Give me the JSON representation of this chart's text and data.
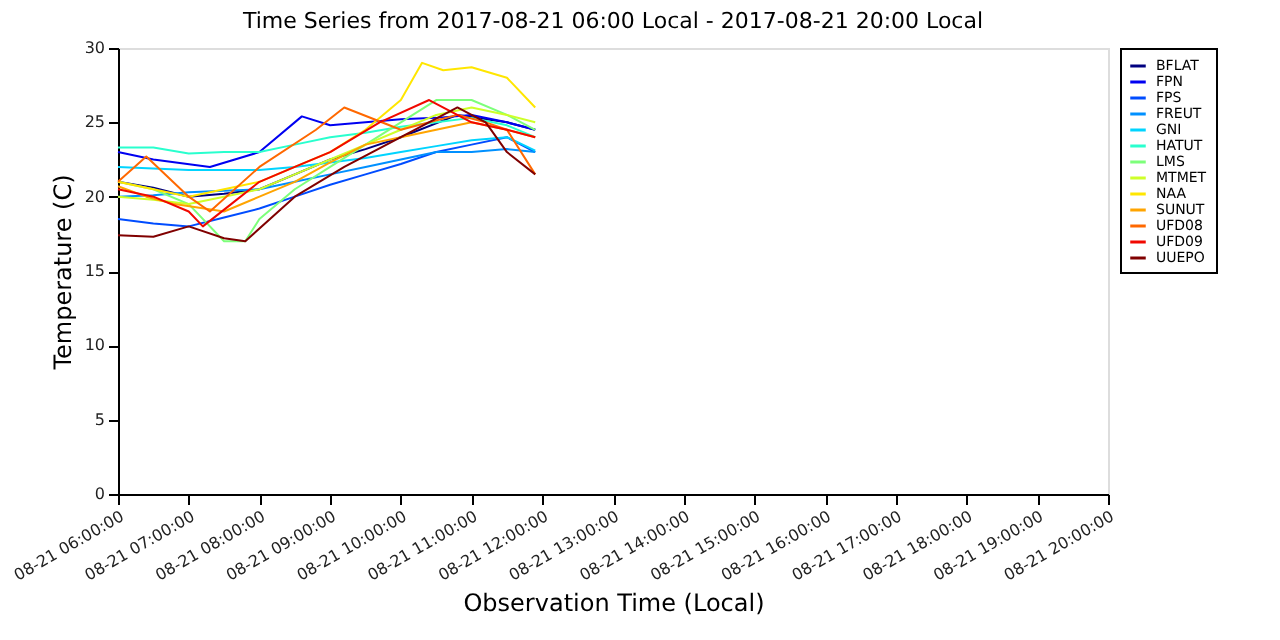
{
  "chart_data": {
    "type": "line",
    "title": "Time Series from 2017-08-21 06:00 Local - 2017-08-21 20:00 Local",
    "xlabel": "Observation Time (Local)",
    "ylabel": "Temperature (C)",
    "xlim": [
      "2017-08-21T06:00",
      "2017-08-21T20:00"
    ],
    "ylim": [
      0,
      30
    ],
    "yticks": [
      0,
      5,
      10,
      15,
      20,
      25,
      30
    ],
    "xticks": [
      {
        "value": "2017-08-21T06:00",
        "label": "08-21 06:00:00"
      },
      {
        "value": "2017-08-21T07:00",
        "label": "08-21 07:00:00"
      },
      {
        "value": "2017-08-21T08:00",
        "label": "08-21 08:00:00"
      },
      {
        "value": "2017-08-21T09:00",
        "label": "08-21 09:00:00"
      },
      {
        "value": "2017-08-21T10:00",
        "label": "08-21 10:00:00"
      },
      {
        "value": "2017-08-21T11:00",
        "label": "08-21 11:00:00"
      },
      {
        "value": "2017-08-21T12:00",
        "label": "08-21 12:00:00"
      },
      {
        "value": "2017-08-21T13:00",
        "label": "08-21 13:00:00"
      },
      {
        "value": "2017-08-21T14:00",
        "label": "08-21 14:00:00"
      },
      {
        "value": "2017-08-21T15:00",
        "label": "08-21 15:00:00"
      },
      {
        "value": "2017-08-21T16:00",
        "label": "08-21 16:00:00"
      },
      {
        "value": "2017-08-21T17:00",
        "label": "08-21 17:00:00"
      },
      {
        "value": "2017-08-21T18:00",
        "label": "08-21 18:00:00"
      },
      {
        "value": "2017-08-21T19:00",
        "label": "08-21 19:00:00"
      },
      {
        "value": "2017-08-21T20:00",
        "label": "08-21 20:00:00"
      }
    ],
    "grid": false,
    "legend": "right",
    "series": [
      {
        "name": "BFLAT",
        "color": "#000080",
        "x": [
          "2017-08-21T06:00",
          "2017-08-21T06:30",
          "2017-08-21T07:00",
          "2017-08-21T07:30",
          "2017-08-21T08:00",
          "2017-08-21T08:30",
          "2017-08-21T09:00",
          "2017-08-21T09:30",
          "2017-08-21T10:00",
          "2017-08-21T10:48",
          "2017-08-21T11:30",
          "2017-08-21T11:54"
        ],
        "values": [
          21,
          20.6,
          20,
          20.2,
          20.5,
          21.5,
          22.5,
          23.2,
          24,
          25.5,
          25,
          24.5
        ]
      },
      {
        "name": "FPN",
        "color": "#0000f1",
        "x": [
          "2017-08-21T06:00",
          "2017-08-21T06:30",
          "2017-08-21T07:18",
          "2017-08-21T08:00",
          "2017-08-21T08:36",
          "2017-08-21T09:00",
          "2017-08-21T09:30",
          "2017-08-21T10:00",
          "2017-08-21T10:30",
          "2017-08-21T11:00",
          "2017-08-21T11:30",
          "2017-08-21T11:54"
        ],
        "values": [
          23,
          22.5,
          22,
          23,
          25.4,
          24.8,
          25,
          25.2,
          25.3,
          25.5,
          25,
          24.5
        ]
      },
      {
        "name": "FPS",
        "color": "#004cff",
        "x": [
          "2017-08-21T06:00",
          "2017-08-21T06:30",
          "2017-08-21T07:00",
          "2017-08-21T07:30",
          "2017-08-21T08:00",
          "2017-08-21T08:30",
          "2017-08-21T09:00",
          "2017-08-21T09:30",
          "2017-08-21T10:00",
          "2017-08-21T10:30",
          "2017-08-21T11:00",
          "2017-08-21T11:30",
          "2017-08-21T11:54"
        ],
        "values": [
          18.5,
          18.2,
          18,
          18.6,
          19.2,
          20,
          20.8,
          21.5,
          22.2,
          23,
          23.5,
          24,
          23
        ]
      },
      {
        "name": "FREUT",
        "color": "#0090ff",
        "x": [
          "2017-08-21T06:00",
          "2017-08-21T06:30",
          "2017-08-21T07:00",
          "2017-08-21T07:30",
          "2017-08-21T08:00",
          "2017-08-21T08:30",
          "2017-08-21T09:00",
          "2017-08-21T09:30",
          "2017-08-21T10:00",
          "2017-08-21T10:30",
          "2017-08-21T11:00",
          "2017-08-21T11:30",
          "2017-08-21T11:54"
        ],
        "values": [
          20,
          20.1,
          20.3,
          20.4,
          20.5,
          21,
          21.5,
          22,
          22.5,
          23,
          23,
          23.2,
          23
        ]
      },
      {
        "name": "GNI",
        "color": "#00d4ff",
        "x": [
          "2017-08-21T06:00",
          "2017-08-21T06:30",
          "2017-08-21T07:00",
          "2017-08-21T07:30",
          "2017-08-21T08:00",
          "2017-08-21T08:30",
          "2017-08-21T09:00",
          "2017-08-21T09:30",
          "2017-08-21T10:00",
          "2017-08-21T10:30",
          "2017-08-21T11:00",
          "2017-08-21T11:30",
          "2017-08-21T11:54"
        ],
        "values": [
          22,
          21.9,
          21.8,
          21.8,
          21.8,
          22,
          22.3,
          22.6,
          23,
          23.4,
          23.8,
          24,
          23.1
        ]
      },
      {
        "name": "HATUT",
        "color": "#29ffce",
        "x": [
          "2017-08-21T06:00",
          "2017-08-21T06:30",
          "2017-08-21T07:00",
          "2017-08-21T07:30",
          "2017-08-21T08:00",
          "2017-08-21T08:30",
          "2017-08-21T09:00",
          "2017-08-21T09:30",
          "2017-08-21T10:00",
          "2017-08-21T10:30",
          "2017-08-21T11:00",
          "2017-08-21T11:30",
          "2017-08-21T11:54"
        ],
        "values": [
          23.3,
          23.3,
          22.9,
          23,
          23,
          23.5,
          24,
          24.3,
          24.7,
          25,
          25.3,
          24.8,
          24
        ]
      },
      {
        "name": "LMS",
        "color": "#7dff7a",
        "x": [
          "2017-08-21T06:00",
          "2017-08-21T06:30",
          "2017-08-21T07:00",
          "2017-08-21T07:30",
          "2017-08-21T07:48",
          "2017-08-21T08:00",
          "2017-08-21T08:30",
          "2017-08-21T09:00",
          "2017-08-21T09:30",
          "2017-08-21T10:00",
          "2017-08-21T10:30",
          "2017-08-21T11:00",
          "2017-08-21T11:30",
          "2017-08-21T11:54"
        ],
        "values": [
          21,
          20.5,
          19.5,
          17,
          17,
          18.5,
          20.5,
          22,
          23.5,
          25,
          26.5,
          26.5,
          25.5,
          24.5
        ]
      },
      {
        "name": "MTMET",
        "color": "#ceff29",
        "x": [
          "2017-08-21T06:00",
          "2017-08-21T06:30",
          "2017-08-21T07:00",
          "2017-08-21T07:30",
          "2017-08-21T08:00",
          "2017-08-21T08:30",
          "2017-08-21T09:00",
          "2017-08-21T09:30",
          "2017-08-21T10:00",
          "2017-08-21T10:30",
          "2017-08-21T11:00",
          "2017-08-21T11:30",
          "2017-08-21T11:54"
        ],
        "values": [
          20,
          19.8,
          19.5,
          20,
          20.5,
          21.5,
          22.5,
          23.5,
          24.5,
          25.5,
          26,
          25.5,
          25
        ]
      },
      {
        "name": "NAA",
        "color": "#ffe600",
        "x": [
          "2017-08-21T06:00",
          "2017-08-21T06:30",
          "2017-08-21T07:00",
          "2017-08-21T07:30",
          "2017-08-21T08:00",
          "2017-08-21T08:30",
          "2017-08-21T09:00",
          "2017-08-21T09:30",
          "2017-08-21T10:00",
          "2017-08-21T10:18",
          "2017-08-21T10:36",
          "2017-08-21T11:00",
          "2017-08-21T11:30",
          "2017-08-21T11:54"
        ],
        "values": [
          21,
          20.5,
          20,
          20.5,
          21,
          22,
          23,
          24.5,
          26.5,
          29,
          28.5,
          28.7,
          28,
          26
        ]
      },
      {
        "name": "SUNUT",
        "color": "#ffa400",
        "x": [
          "2017-08-21T06:00",
          "2017-08-21T06:24",
          "2017-08-21T06:48",
          "2017-08-21T07:30",
          "2017-08-21T08:00",
          "2017-08-21T08:30",
          "2017-08-21T09:00",
          "2017-08-21T09:30",
          "2017-08-21T10:00",
          "2017-08-21T10:30",
          "2017-08-21T11:00",
          "2017-08-21T11:30",
          "2017-08-21T11:54"
        ],
        "values": [
          20.7,
          20,
          19.5,
          19,
          20,
          21,
          22.3,
          23.5,
          24,
          24.5,
          25,
          24.5,
          24
        ]
      },
      {
        "name": "UFD08",
        "color": "#ff6800",
        "x": [
          "2017-08-21T06:00",
          "2017-08-21T06:24",
          "2017-08-21T07:00",
          "2017-08-21T07:18",
          "2017-08-21T08:00",
          "2017-08-21T08:48",
          "2017-08-21T09:12",
          "2017-08-21T10:00",
          "2017-08-21T10:48",
          "2017-08-21T11:12",
          "2017-08-21T11:30",
          "2017-08-21T11:54"
        ],
        "values": [
          21,
          22.7,
          20,
          19,
          22,
          24.5,
          26,
          24.5,
          25.5,
          25,
          24.5,
          21.5
        ]
      },
      {
        "name": "UFD09",
        "color": "#f10800",
        "x": [
          "2017-08-21T06:00",
          "2017-08-21T06:30",
          "2017-08-21T07:00",
          "2017-08-21T07:12",
          "2017-08-21T07:36",
          "2017-08-21T08:00",
          "2017-08-21T08:30",
          "2017-08-21T09:00",
          "2017-08-21T09:42",
          "2017-08-21T10:24",
          "2017-08-21T11:00",
          "2017-08-21T11:30",
          "2017-08-21T11:54"
        ],
        "values": [
          20.5,
          20,
          19,
          18,
          19.5,
          21,
          22,
          23,
          25,
          26.5,
          25,
          24.5,
          24
        ]
      },
      {
        "name": "UUEPO",
        "color": "#800000",
        "x": [
          "2017-08-21T06:00",
          "2017-08-21T06:30",
          "2017-08-21T07:00",
          "2017-08-21T07:30",
          "2017-08-21T07:48",
          "2017-08-21T08:30",
          "2017-08-21T09:12",
          "2017-08-21T10:00",
          "2017-08-21T10:48",
          "2017-08-21T11:12",
          "2017-08-21T11:30",
          "2017-08-21T11:54"
        ],
        "values": [
          17.4,
          17.3,
          18,
          17.2,
          17,
          20,
          22,
          24,
          26,
          25,
          23,
          21.5
        ]
      }
    ]
  }
}
